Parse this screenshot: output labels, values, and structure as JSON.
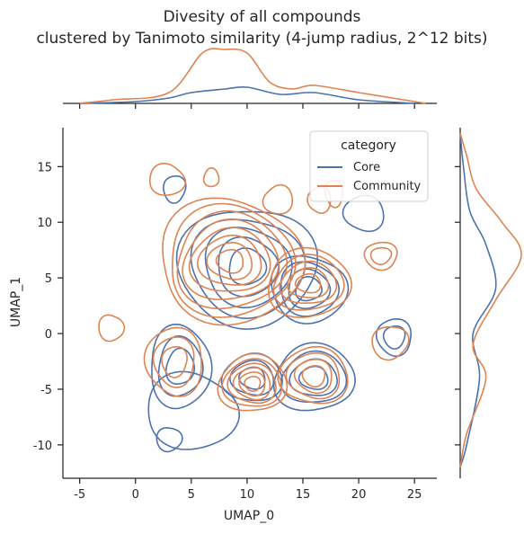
{
  "chart_data": {
    "type": "kde-joint",
    "title_line1": "Divesity of all compounds",
    "title_line2": "clustered by Tanimoto similarity (4-jump radius, 2^12 bits)",
    "xlabel": "UMAP_0",
    "ylabel": "UMAP_1",
    "xlim": [
      -6.5,
      27
    ],
    "ylim": [
      -13,
      18.5
    ],
    "xticks": [
      -5,
      0,
      5,
      10,
      15,
      20,
      25
    ],
    "yticks": [
      -10,
      -5,
      0,
      5,
      10,
      15
    ],
    "grid": false,
    "legend": {
      "title": "category",
      "placement": "top-right",
      "entries": [
        {
          "name": "Core",
          "color": "#4c72b0"
        },
        {
          "name": "Community",
          "color": "#dd8452"
        }
      ]
    },
    "series": [
      {
        "name": "Core",
        "color": "#4c72b0",
        "clusters": [
          {
            "center": [
              10,
              6
            ],
            "radius": [
              6,
              5.5
            ],
            "levels": 5
          },
          {
            "center": [
              15.5,
              4
            ],
            "radius": [
              3.4,
              3
            ],
            "levels": 4
          },
          {
            "center": [
              4,
              -3
            ],
            "radius": [
              2.8,
              3.6
            ],
            "levels": 3
          },
          {
            "center": [
              16,
              -4
            ],
            "radius": [
              3.6,
              3
            ],
            "levels": 4
          },
          {
            "center": [
              10.5,
              -4
            ],
            "radius": [
              2.6,
              2.2
            ],
            "levels": 3
          },
          {
            "center": [
              20.5,
              10.8
            ],
            "radius": [
              1.8,
              1.6
            ],
            "levels": 1
          },
          {
            "center": [
              23.2,
              -0.3
            ],
            "radius": [
              1.6,
              1.6
            ],
            "levels": 2
          },
          {
            "center": [
              3.5,
              13
            ],
            "radius": [
              1,
              1.2
            ],
            "levels": 1
          },
          {
            "center": [
              3,
              -9.5
            ],
            "radius": [
              1.1,
              1.1
            ],
            "levels": 1
          },
          {
            "center": [
              5,
              -7
            ],
            "radius": [
              4,
              3.5
            ],
            "levels": 1
          }
        ],
        "x_density": [
          [
            -5,
            0.0
          ],
          [
            0,
            0.005
          ],
          [
            3,
            0.015
          ],
          [
            5,
            0.03
          ],
          [
            8,
            0.04
          ],
          [
            10,
            0.045
          ],
          [
            13,
            0.025
          ],
          [
            16,
            0.03
          ],
          [
            20,
            0.01
          ],
          [
            25,
            0.0
          ]
        ],
        "y_density": [
          [
            -12,
            0.0
          ],
          [
            -10,
            0.01
          ],
          [
            -4,
            0.03
          ],
          [
            0,
            0.02
          ],
          [
            4,
            0.055
          ],
          [
            8,
            0.04
          ],
          [
            11,
            0.015
          ],
          [
            15,
            0.005
          ],
          [
            18,
            0.0
          ]
        ]
      },
      {
        "name": "Community",
        "color": "#dd8452",
        "clusters": [
          {
            "center": [
              8.5,
              6.5
            ],
            "radius": [
              6.5,
              5.5
            ],
            "levels": 8
          },
          {
            "center": [
              15.5,
              4.5
            ],
            "radius": [
              3.8,
              3
            ],
            "levels": 5
          },
          {
            "center": [
              10.5,
              -4.5
            ],
            "radius": [
              3,
              2.6
            ],
            "levels": 6
          },
          {
            "center": [
              16,
              -3.8
            ],
            "radius": [
              3,
              2.6
            ],
            "levels": 4
          },
          {
            "center": [
              3.5,
              -2.5
            ],
            "radius": [
              2.6,
              3
            ],
            "levels": 3
          },
          {
            "center": [
              22,
              7
            ],
            "radius": [
              1.5,
              1.2
            ],
            "levels": 2
          },
          {
            "center": [
              22.8,
              -0.8
            ],
            "radius": [
              1.6,
              1.5
            ],
            "levels": 1
          },
          {
            "center": [
              -2.2,
              0.5
            ],
            "radius": [
              1.1,
              1.2
            ],
            "levels": 1
          },
          {
            "center": [
              2.8,
              13.8
            ],
            "radius": [
              1.6,
              1.4
            ],
            "levels": 1
          },
          {
            "center": [
              6.8,
              14
            ],
            "radius": [
              0.7,
              0.8
            ],
            "levels": 1
          },
          {
            "center": [
              12.8,
              12
            ],
            "radius": [
              1.3,
              1.3
            ],
            "levels": 1
          },
          {
            "center": [
              16.5,
              12
            ],
            "radius": [
              1,
              1.2
            ],
            "levels": 1
          },
          {
            "center": [
              17.8,
              12.6
            ],
            "radius": [
              0.8,
              1.2
            ],
            "levels": 1
          }
        ],
        "x_density": [
          [
            -5,
            0.0
          ],
          [
            -2,
            0.01
          ],
          [
            3,
            0.03
          ],
          [
            6,
            0.14
          ],
          [
            8,
            0.15
          ],
          [
            10,
            0.14
          ],
          [
            12,
            0.06
          ],
          [
            14,
            0.04
          ],
          [
            16,
            0.05
          ],
          [
            20,
            0.03
          ],
          [
            24,
            0.01
          ],
          [
            26,
            0.0
          ]
        ],
        "y_density": [
          [
            -12,
            0.0
          ],
          [
            -9,
            0.01
          ],
          [
            -4,
            0.04
          ],
          [
            -1,
            0.02
          ],
          [
            3,
            0.055
          ],
          [
            7,
            0.095
          ],
          [
            10,
            0.065
          ],
          [
            13,
            0.025
          ],
          [
            16,
            0.01
          ],
          [
            18,
            0.0
          ]
        ]
      }
    ]
  }
}
